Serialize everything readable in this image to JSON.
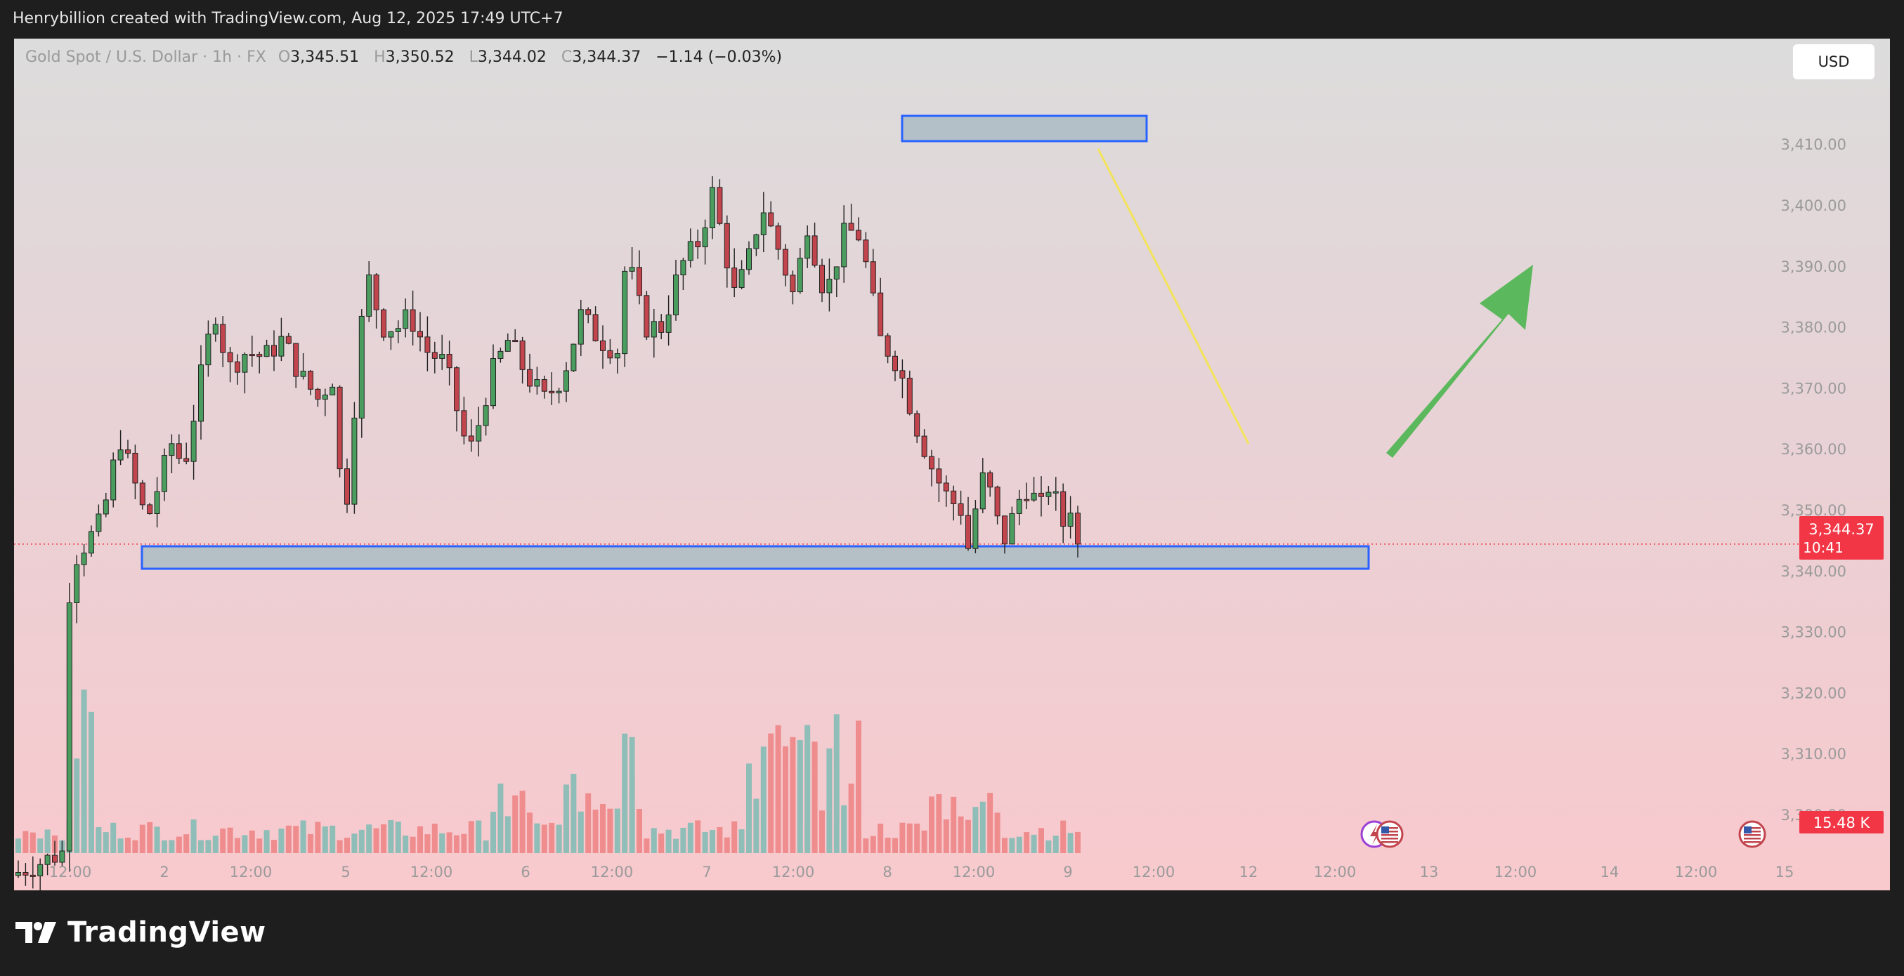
{
  "caption": "Henrybillion created with TradingView.com, Aug 12, 2025 17:49 UTC+7",
  "legend": {
    "symbol": "Gold Spot / U.S. Dollar · 1h · FX",
    "o_label": "O",
    "open": "3,345.51",
    "h_label": "H",
    "high": "3,350.52",
    "l_label": "L",
    "low": "3,344.02",
    "c_label": "C",
    "close": "3,344.37",
    "change": "−1.14 (−0.03%)"
  },
  "currency": "USD",
  "brand": {
    "name": "TradingView"
  },
  "price_badge": {
    "price": "3,344.37",
    "countdown": "10:41"
  },
  "volume_badge": "15.48 K",
  "colors": {
    "up": "#4a9d5f",
    "down": "#c2444d",
    "vol_up": "#8fbdb7",
    "vol_down": "#ef8d8e",
    "zone_border": "#2962ff",
    "zone_fill": "#aebcc4",
    "trendline": "#f2e35a",
    "arrow": "#5cb85c",
    "price_badge": "#f23645",
    "price_line": "#f23645"
  },
  "icons": [
    "economic-event-icon",
    "us-flag-icon"
  ],
  "chart_data": {
    "type": "candlestick",
    "symbol": "XAUUSD",
    "timeframe": "1h",
    "y_axis": {
      "ticks": [
        3300,
        3310,
        3320,
        3330,
        3340,
        3350,
        3360,
        3370,
        3380,
        3390,
        3400,
        3410
      ],
      "tick_labels": [
        "3,300.00",
        "3,310.00",
        "3,320.00",
        "3,330.00",
        "3,340.00",
        "3,350.00",
        "3,360.00",
        "3,370.00",
        "3,380.00",
        "3,390.00",
        "3,400.00",
        "3,410.00"
      ],
      "range": [
        3285,
        3425
      ]
    },
    "x_axis": {
      "tick_labels": [
        "12:00",
        "2",
        "12:00",
        "5",
        "12:00",
        "6",
        "12:00",
        "7",
        "12:00",
        "8",
        "12:00",
        "9",
        "12:00",
        "12",
        "12:00",
        "13",
        "12:00",
        "14",
        "12:00",
        "15"
      ],
      "tick_index": [
        0,
        10,
        20,
        30,
        40,
        50,
        60,
        70,
        80,
        90,
        100,
        110,
        120,
        130,
        140,
        150,
        160,
        170,
        180,
        190
      ]
    },
    "candle_count": 146,
    "anchors": [
      [
        0,
        3290
      ],
      [
        12,
        3294
      ],
      [
        13,
        3341
      ],
      [
        16,
        3344
      ],
      [
        20,
        3348
      ],
      [
        24,
        3362
      ],
      [
        30,
        3348
      ],
      [
        36,
        3362
      ],
      [
        38,
        3356
      ],
      [
        42,
        3372
      ],
      [
        45,
        3383
      ],
      [
        48,
        3373
      ],
      [
        52,
        3376
      ],
      [
        56,
        3375
      ],
      [
        60,
        3378
      ],
      [
        64,
        3372
      ],
      [
        68,
        3368
      ],
      [
        71,
        3372
      ],
      [
        73,
        3353
      ],
      [
        74,
        3350
      ],
      [
        76,
        3368
      ],
      [
        78,
        3385
      ],
      [
        79,
        3388
      ],
      [
        82,
        3380
      ],
      [
        86,
        3380
      ],
      [
        88,
        3382
      ],
      [
        92,
        3376
      ],
      [
        96,
        3374
      ],
      [
        100,
        3362
      ],
      [
        102,
        3360
      ],
      [
        106,
        3372
      ],
      [
        110,
        3378
      ],
      [
        114,
        3372
      ],
      [
        118,
        3368
      ],
      [
        122,
        3372
      ],
      [
        126,
        3382
      ],
      [
        130,
        3378
      ],
      [
        134,
        3376
      ],
      [
        136,
        3392
      ],
      [
        140,
        3380
      ],
      [
        144,
        3380
      ],
      [
        148,
        3390
      ],
      [
        152,
        3394
      ],
      [
        155,
        3402
      ],
      [
        158,
        3392
      ],
      [
        160,
        3385
      ],
      [
        163,
        3391
      ],
      [
        166,
        3400
      ],
      [
        170,
        3392
      ],
      [
        173,
        3385
      ],
      [
        176,
        3397
      ],
      [
        180,
        3385
      ],
      [
        184,
        3395
      ],
      [
        187,
        3396
      ],
      [
        189,
        3390
      ],
      [
        192,
        3378
      ],
      [
        196,
        3374
      ],
      [
        200,
        3364
      ],
      [
        204,
        3356
      ],
      [
        207,
        3352
      ],
      [
        210,
        3350
      ],
      [
        212,
        3342
      ],
      [
        214,
        3356
      ],
      [
        217,
        3352
      ],
      [
        219,
        3344
      ],
      [
        222,
        3350
      ],
      [
        224,
        3354
      ],
      [
        228,
        3350
      ],
      [
        230,
        3356
      ],
      [
        232,
        3346
      ],
      [
        234,
        3352
      ],
      [
        235,
        3344.37
      ]
    ],
    "volume": {
      "labels": [
        "15.48 K"
      ]
    },
    "annotations": [
      {
        "type": "supply-zone",
        "from": 160,
        "to": 195,
        "low": 3408,
        "high": 3412
      },
      {
        "type": "demand-zone",
        "from": 17,
        "to": 193,
        "low": 3338,
        "high": 3341.5
      },
      {
        "type": "trendline",
        "from": [
          206,
          3407
        ],
        "to": [
          227,
          3358
        ]
      },
      {
        "type": "arrow",
        "direction": "up",
        "from": [
          235,
          3358
        ],
        "to": [
          252,
          3388
        ]
      }
    ],
    "last_price": 3344.37
  }
}
